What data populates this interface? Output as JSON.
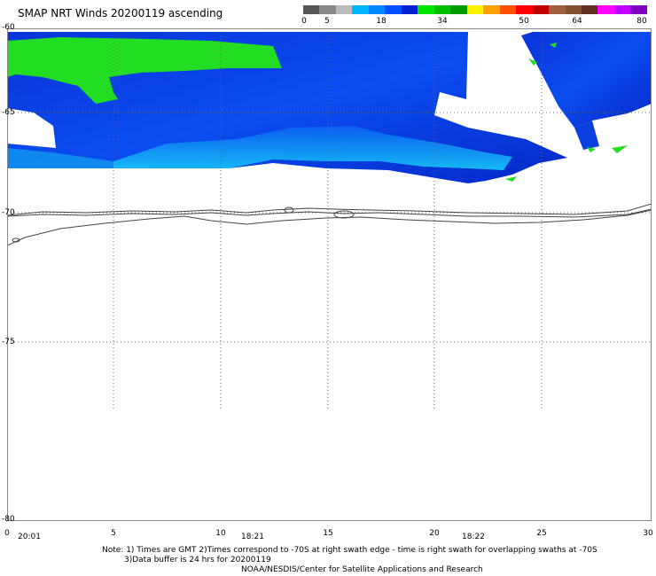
{
  "title": "SMAP NRT Winds 20200119 ascending",
  "colorbar": {
    "labels": [
      "0",
      "5",
      "18",
      "34",
      "50",
      "64",
      "80"
    ],
    "segments": [
      {
        "color": "#555555"
      },
      {
        "color": "#888888"
      },
      {
        "color": "#bbbbbb"
      },
      {
        "color": "#00b4ff"
      },
      {
        "color": "#0088ff"
      },
      {
        "color": "#0050ff"
      },
      {
        "color": "#0020d0"
      },
      {
        "color": "#00e400"
      },
      {
        "color": "#00c000"
      },
      {
        "color": "#009a00"
      },
      {
        "color": "#fff200"
      },
      {
        "color": "#ffa000"
      },
      {
        "color": "#ff5000"
      },
      {
        "color": "#ff0000"
      },
      {
        "color": "#c00000"
      },
      {
        "color": "#a06040"
      },
      {
        "color": "#805030"
      },
      {
        "color": "#603020"
      },
      {
        "color": "#ff00ff"
      },
      {
        "color": "#c000ff"
      },
      {
        "color": "#8000c0"
      }
    ]
  },
  "lat_labels": [
    "-60",
    "-65",
    "-70",
    "-75",
    "-80"
  ],
  "lon_labels": [
    "0",
    "5",
    "10",
    "15",
    "20",
    "25",
    "30"
  ],
  "time_labels": [
    "20:01",
    "18:21",
    "18:22"
  ],
  "notes": {
    "line1": "Note: 1) Times are GMT 2)Times correspond to -70S at right swath edge - time is right swath for overlapping swaths at -70S",
    "line2": "3)Data buffer is 24 hrs for 20200119",
    "line3": "NOAA/NESDIS/Center for Satellite Applications and Research"
  },
  "colors": {
    "wind_blue": "#0a3ae0",
    "wind_light_blue": "#12b8f0",
    "wind_green": "#22dd22",
    "coast": "#444444",
    "grid": "#666666"
  }
}
